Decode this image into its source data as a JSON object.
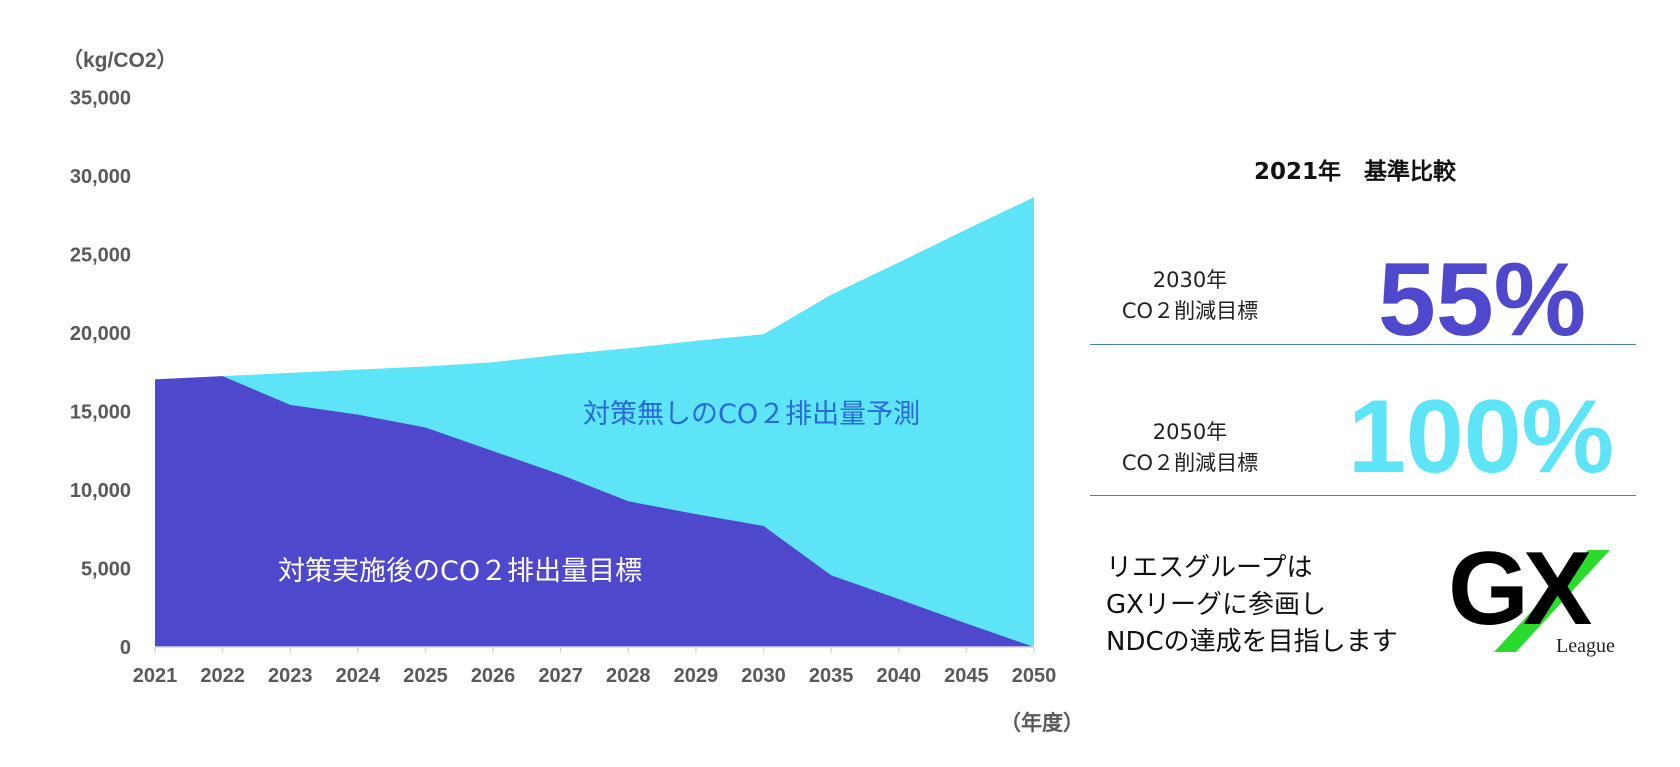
{
  "chart_data": {
    "type": "area",
    "ylabel": "（kg/CO2）",
    "xlabel": "（年度）",
    "categories": [
      "2021",
      "2022",
      "2023",
      "2024",
      "2025",
      "2026",
      "2027",
      "2028",
      "2029",
      "2030",
      "2035",
      "2040",
      "2045",
      "2050"
    ],
    "ylim": [
      0,
      35000
    ],
    "yticks": [
      "0",
      "5,000",
      "10,000",
      "15,000",
      "20,000",
      "25,000",
      "30,000",
      "35,000"
    ],
    "grid": false,
    "series": [
      {
        "name": "対策無しのCO２排出量予測",
        "color": "#5EE4F7",
        "values": [
          17050,
          17250,
          17460,
          17670,
          17870,
          18140,
          18620,
          19030,
          19500,
          19920,
          22440,
          24490,
          26600,
          28650
        ]
      },
      {
        "name": "対策実施後のCO２排出量目標",
        "color": "#5048CC",
        "values": [
          17050,
          17250,
          15420,
          14800,
          13980,
          12480,
          10980,
          9280,
          8460,
          7710,
          4570,
          3050,
          1500,
          0
        ]
      }
    ],
    "label_colors": {
      "forecast": "#2A6AD8",
      "target": "#FFFFFF"
    }
  },
  "panel": {
    "title": "2021年　基準比較",
    "rows": [
      {
        "year": "2030年",
        "label": "CO２削減目標",
        "value": "55%",
        "color": "#5048CC"
      },
      {
        "year": "2050年",
        "label": "CO２削減目標",
        "value": "100%",
        "color": "#5EE4F7"
      }
    ],
    "gx_text": [
      "リエスグループは",
      "GXリーグに参画し",
      "NDCの達成を目指します"
    ],
    "logo": {
      "text": "GX",
      "sub": "League"
    }
  }
}
